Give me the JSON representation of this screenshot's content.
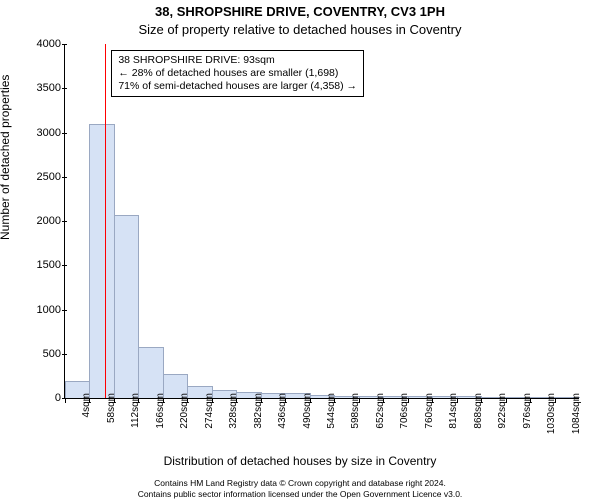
{
  "chart": {
    "type": "histogram",
    "title_main": "38, SHROPSHIRE DRIVE, COVENTRY, CV3 1PH",
    "title_sub": "Size of property relative to detached houses in Coventry",
    "title_fontsize": 13,
    "ylabel": "Number of detached properties",
    "xlabel": "Distribution of detached houses by size in Coventry",
    "label_fontsize": 12,
    "ylim": [
      0,
      4000
    ],
    "ytick_step": 500,
    "yticks": [
      0,
      500,
      1000,
      1500,
      2000,
      2500,
      3000,
      3500,
      4000
    ],
    "x_bin_start": 4,
    "x_bin_width": 54,
    "x_bin_count": 21,
    "xtick_labels": [
      "4sqm",
      "58sqm",
      "112sqm",
      "166sqm",
      "220sqm",
      "274sqm",
      "328sqm",
      "382sqm",
      "436sqm",
      "490sqm",
      "544sqm",
      "598sqm",
      "652sqm",
      "706sqm",
      "760sqm",
      "814sqm",
      "868sqm",
      "922sqm",
      "976sqm",
      "1030sqm",
      "1084sqm"
    ],
    "xtick_fontsize": 10,
    "values": [
      180,
      3080,
      2060,
      560,
      260,
      130,
      75,
      55,
      50,
      40,
      25,
      15,
      12,
      10,
      9,
      8,
      6,
      5,
      4,
      3,
      2
    ],
    "bar_fill": "#d6e2f5",
    "bar_stroke": "#9aa8c2",
    "marker_value_sqm": 93,
    "marker_color": "#ff0000",
    "legend": {
      "line1": "38 SHROPSHIRE DRIVE: 93sqm",
      "line2": "← 28% of detached houses are smaller (1,698)",
      "line3": "71% of semi-detached houses are larger (4,358) →"
    },
    "background_color": "#ffffff",
    "axis_color": "#000000"
  },
  "footer": {
    "line1": "Contains HM Land Registry data © Crown copyright and database right 2024.",
    "line2": "Contains public sector information licensed under the Open Government Licence v3.0."
  }
}
